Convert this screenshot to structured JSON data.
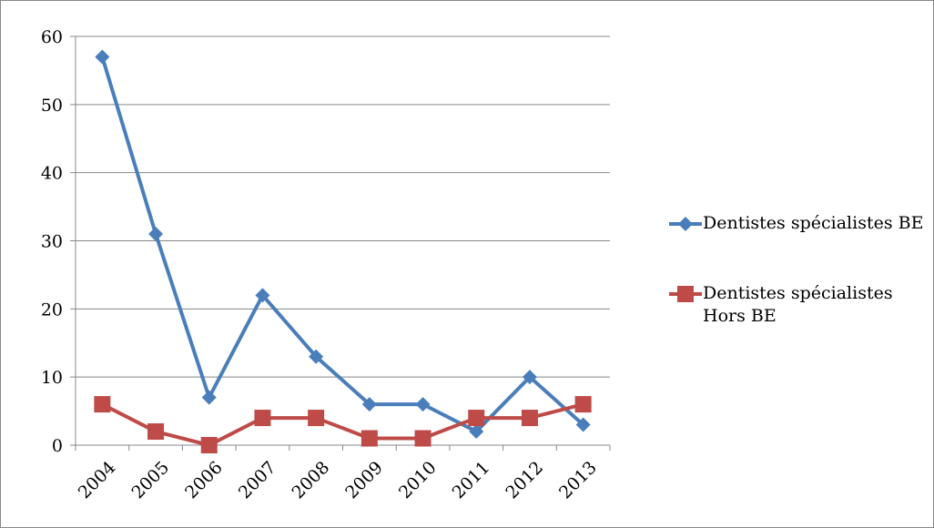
{
  "chart_data": {
    "type": "line",
    "categories": [
      "2004",
      "2005",
      "2006",
      "2007",
      "2008",
      "2009",
      "2010",
      "2011",
      "2012",
      "2013"
    ],
    "series": [
      {
        "name": "Dentistes spécialistes BE",
        "color": "#4a7ebb",
        "marker": "diamond",
        "values": [
          57,
          31,
          7,
          22,
          13,
          6,
          6,
          2,
          10,
          3
        ]
      },
      {
        "name": "Dentistes spécialistes Hors BE",
        "color": "#be4b48",
        "marker": "square",
        "values": [
          6,
          2,
          0,
          4,
          4,
          1,
          1,
          4,
          4,
          6
        ]
      }
    ],
    "ylim": [
      0,
      60
    ],
    "yticks": [
      0,
      10,
      20,
      30,
      40,
      50,
      60
    ],
    "grid": true,
    "legend": "right"
  }
}
